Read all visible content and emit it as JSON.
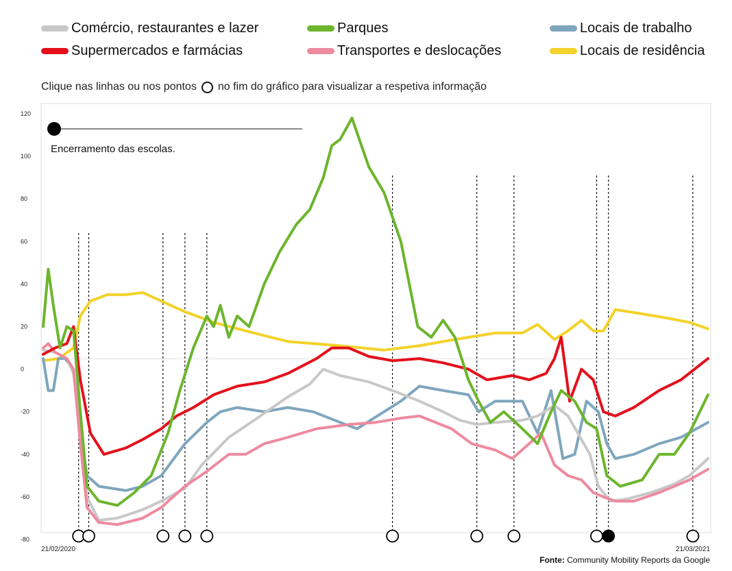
{
  "legend": {
    "items": [
      {
        "label": "Comércio, restaurantes e lazer",
        "color": "#c8c8c8"
      },
      {
        "label": "Parques",
        "color": "#6cb52d"
      },
      {
        "label": "Locais de trabalho",
        "color": "#7fa6bd"
      },
      {
        "label": "Supermercados e farmácias",
        "color": "#e3101b"
      },
      {
        "label": "Transportes e deslocações",
        "color": "#ee8aa0"
      },
      {
        "label": "Locais de residência",
        "color": "#f3d22a"
      }
    ]
  },
  "instruction": {
    "before": "Clique nas linhas ou nos pontos",
    "after": "no fim do gráfico para visualizar a respetiva informação"
  },
  "annotation": {
    "text": "Encerramento das escolas."
  },
  "source": {
    "label": "Fonte:",
    "text": "Community Mobility Reports da Google"
  },
  "chart_data": {
    "type": "line",
    "title": "",
    "xlabel": "",
    "ylabel": "",
    "x_start_label": "21/02/2020",
    "x_end_label": "21/03/2021",
    "ylim": [
      -80,
      120
    ],
    "yticks": [
      120,
      100,
      80,
      60,
      40,
      20,
      0,
      -20,
      -40,
      -60,
      -80
    ],
    "grid": false,
    "legend_position": "top",
    "event_markers": [
      {
        "date": "2020-03-13",
        "selected": false
      },
      {
        "date": "2020-03-19",
        "selected": false
      },
      {
        "date": "2020-05-02",
        "selected": false
      },
      {
        "date": "2020-05-15",
        "selected": false
      },
      {
        "date": "2020-05-28",
        "selected": false
      },
      {
        "date": "2020-09-15",
        "selected": false
      },
      {
        "date": "2020-11-04",
        "selected": false
      },
      {
        "date": "2020-11-26",
        "selected": false
      },
      {
        "date": "2021-01-14",
        "selected": false
      },
      {
        "date": "2021-01-21",
        "selected": true
      },
      {
        "date": "2021-03-12",
        "selected": false
      }
    ],
    "series": [
      {
        "name": "Comércio, restaurantes e lazer",
        "color": "#c8c8c8",
        "x": [
          "2020-02-21",
          "2020-02-28",
          "2020-03-06",
          "2020-03-10",
          "2020-03-14",
          "2020-03-18",
          "2020-03-25",
          "2020-04-05",
          "2020-04-20",
          "2020-05-01",
          "2020-05-15",
          "2020-05-25",
          "2020-06-10",
          "2020-06-25",
          "2020-07-15",
          "2020-07-28",
          "2020-08-05",
          "2020-08-15",
          "2020-09-01",
          "2020-09-15",
          "2020-10-01",
          "2020-10-15",
          "2020-10-25",
          "2020-11-04",
          "2020-11-15",
          "2020-12-01",
          "2020-12-10",
          "2020-12-20",
          "2020-12-28",
          "2021-01-05",
          "2021-01-10",
          "2021-01-15",
          "2021-01-22",
          "2021-02-01",
          "2021-02-15",
          "2021-03-01",
          "2021-03-10",
          "2021-03-21"
        ],
        "values": [
          9,
          8,
          5,
          -2,
          -28,
          -60,
          -71,
          -70,
          -66,
          -62,
          -56,
          -45,
          -32,
          -24,
          -13,
          -7,
          0,
          -3,
          -6,
          -10,
          -15,
          -20,
          -24,
          -26,
          -25,
          -24,
          -22,
          -17,
          -22,
          -33,
          -40,
          -55,
          -62,
          -61,
          -58,
          -54,
          -50,
          -42
        ]
      },
      {
        "name": "Parques",
        "color": "#6cb52d",
        "x": [
          "2020-02-21",
          "2020-02-24",
          "2020-02-27",
          "2020-03-02",
          "2020-03-06",
          "2020-03-10",
          "2020-03-14",
          "2020-03-18",
          "2020-03-25",
          "2020-04-05",
          "2020-04-15",
          "2020-04-25",
          "2020-05-05",
          "2020-05-12",
          "2020-05-20",
          "2020-05-28",
          "2020-06-01",
          "2020-06-05",
          "2020-06-10",
          "2020-06-15",
          "2020-06-22",
          "2020-07-01",
          "2020-07-10",
          "2020-07-20",
          "2020-07-28",
          "2020-08-05",
          "2020-08-10",
          "2020-08-15",
          "2020-08-22",
          "2020-09-01",
          "2020-09-10",
          "2020-09-20",
          "2020-09-30",
          "2020-10-08",
          "2020-10-15",
          "2020-10-22",
          "2020-10-30",
          "2020-11-05",
          "2020-11-12",
          "2020-11-20",
          "2020-12-01",
          "2020-12-10",
          "2020-12-18",
          "2020-12-24",
          "2021-01-01",
          "2021-01-08",
          "2021-01-14",
          "2021-01-20",
          "2021-01-28",
          "2021-02-10",
          "2021-02-20",
          "2021-03-01",
          "2021-03-10",
          "2021-03-21"
        ],
        "values": [
          20,
          47,
          30,
          10,
          20,
          18,
          -20,
          -55,
          -62,
          -64,
          -58,
          -50,
          -30,
          -10,
          10,
          25,
          20,
          30,
          15,
          25,
          20,
          40,
          55,
          68,
          75,
          90,
          105,
          108,
          118,
          95,
          83,
          60,
          20,
          15,
          23,
          15,
          -5,
          -15,
          -25,
          -20,
          -28,
          -35,
          -20,
          -10,
          -15,
          -25,
          -28,
          -50,
          -55,
          -52,
          -40,
          -40,
          -30,
          -12
        ]
      },
      {
        "name": "Locais de trabalho",
        "color": "#7fa6bd",
        "x": [
          "2020-02-21",
          "2020-02-24",
          "2020-02-27",
          "2020-03-01",
          "2020-03-05",
          "2020-03-10",
          "2020-03-14",
          "2020-03-18",
          "2020-03-25",
          "2020-04-10",
          "2020-04-20",
          "2020-05-01",
          "2020-05-15",
          "2020-05-28",
          "2020-06-05",
          "2020-06-15",
          "2020-07-01",
          "2020-07-15",
          "2020-07-30",
          "2020-08-15",
          "2020-08-25",
          "2020-09-10",
          "2020-09-20",
          "2020-10-01",
          "2020-10-15",
          "2020-10-30",
          "2020-11-05",
          "2020-11-15",
          "2020-12-01",
          "2020-12-10",
          "2020-12-18",
          "2020-12-25",
          "2021-01-01",
          "2021-01-08",
          "2021-01-15",
          "2021-01-20",
          "2021-01-25",
          "2021-02-05",
          "2021-02-20",
          "2021-03-05",
          "2021-03-21"
        ],
        "values": [
          5,
          -10,
          -10,
          5,
          5,
          0,
          -30,
          -50,
          -55,
          -57,
          -55,
          -50,
          -35,
          -25,
          -20,
          -18,
          -20,
          -18,
          -20,
          -25,
          -28,
          -20,
          -15,
          -8,
          -10,
          -12,
          -20,
          -15,
          -15,
          -30,
          -10,
          -42,
          -40,
          -15,
          -20,
          -35,
          -42,
          -40,
          -35,
          -32,
          -25
        ]
      },
      {
        "name": "Supermercados e farmácias",
        "color": "#e3101b",
        "x": [
          "2020-02-21",
          "2020-02-28",
          "2020-03-06",
          "2020-03-10",
          "2020-03-14",
          "2020-03-20",
          "2020-03-28",
          "2020-04-10",
          "2020-04-20",
          "2020-05-01",
          "2020-05-10",
          "2020-05-20",
          "2020-06-01",
          "2020-06-15",
          "2020-07-01",
          "2020-07-15",
          "2020-08-01",
          "2020-08-10",
          "2020-08-20",
          "2020-09-01",
          "2020-09-15",
          "2020-10-01",
          "2020-10-15",
          "2020-10-30",
          "2020-11-10",
          "2020-11-25",
          "2020-12-05",
          "2020-12-15",
          "2020-12-20",
          "2020-12-24",
          "2020-12-29",
          "2021-01-05",
          "2021-01-12",
          "2021-01-18",
          "2021-01-25",
          "2021-02-05",
          "2021-02-20",
          "2021-03-05",
          "2021-03-21"
        ],
        "values": [
          7,
          10,
          12,
          20,
          -5,
          -30,
          -40,
          -37,
          -33,
          -28,
          -22,
          -18,
          -12,
          -8,
          -6,
          -2,
          5,
          10,
          10,
          6,
          4,
          5,
          3,
          0,
          -5,
          -3,
          -5,
          -2,
          5,
          15,
          -15,
          0,
          -5,
          -20,
          -22,
          -18,
          -10,
          -5,
          5
        ]
      },
      {
        "name": "Transportes e deslocações",
        "color": "#ee8aa0",
        "x": [
          "2020-02-21",
          "2020-02-24",
          "2020-02-28",
          "2020-03-06",
          "2020-03-10",
          "2020-03-14",
          "2020-03-18",
          "2020-03-25",
          "2020-04-05",
          "2020-04-20",
          "2020-05-01",
          "2020-05-15",
          "2020-05-28",
          "2020-06-10",
          "2020-06-20",
          "2020-07-01",
          "2020-07-15",
          "2020-08-01",
          "2020-08-20",
          "2020-09-05",
          "2020-09-20",
          "2020-10-01",
          "2020-10-20",
          "2020-11-01",
          "2020-11-15",
          "2020-11-25",
          "2020-12-05",
          "2020-12-12",
          "2020-12-20",
          "2020-12-28",
          "2021-01-05",
          "2021-01-12",
          "2021-01-18",
          "2021-01-25",
          "2021-02-05",
          "2021-02-20",
          "2021-03-01",
          "2021-03-10",
          "2021-03-21"
        ],
        "values": [
          10,
          12,
          8,
          5,
          0,
          -35,
          -65,
          -72,
          -73,
          -70,
          -65,
          -55,
          -48,
          -40,
          -40,
          -35,
          -32,
          -28,
          -26,
          -25,
          -23,
          -22,
          -28,
          -35,
          -38,
          -42,
          -35,
          -30,
          -45,
          -50,
          -52,
          -58,
          -60,
          -62,
          -62,
          -58,
          -55,
          -52,
          -47
        ]
      },
      {
        "name": "Locais de residência",
        "color": "#f3d22a",
        "x": [
          "2020-02-21",
          "2020-03-01",
          "2020-03-10",
          "2020-03-14",
          "2020-03-20",
          "2020-03-30",
          "2020-04-10",
          "2020-04-20",
          "2020-05-01",
          "2020-05-15",
          "2020-06-01",
          "2020-06-20",
          "2020-07-15",
          "2020-08-15",
          "2020-09-10",
          "2020-10-01",
          "2020-10-15",
          "2020-10-30",
          "2020-11-15",
          "2020-12-01",
          "2020-12-10",
          "2020-12-20",
          "2020-12-28",
          "2021-01-05",
          "2021-01-12",
          "2021-01-18",
          "2021-01-25",
          "2021-02-10",
          "2021-02-25",
          "2021-03-10",
          "2021-03-21"
        ],
        "values": [
          4,
          5,
          10,
          25,
          32,
          35,
          35,
          36,
          32,
          27,
          22,
          18,
          13,
          11,
          9,
          11,
          13,
          15,
          17,
          17,
          21,
          14,
          18,
          23,
          18,
          18,
          28,
          26,
          24,
          22,
          19
        ]
      }
    ]
  }
}
